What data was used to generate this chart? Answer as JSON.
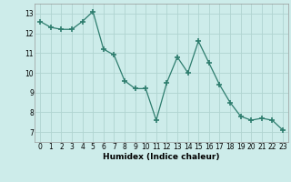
{
  "x": [
    0,
    1,
    2,
    3,
    4,
    5,
    6,
    7,
    8,
    9,
    10,
    11,
    12,
    13,
    14,
    15,
    16,
    17,
    18,
    19,
    20,
    21,
    22,
    23
  ],
  "y": [
    12.6,
    12.3,
    12.2,
    12.2,
    12.6,
    13.1,
    11.2,
    10.9,
    9.6,
    9.2,
    9.2,
    7.6,
    9.5,
    10.8,
    10.0,
    11.6,
    10.5,
    9.4,
    8.5,
    7.8,
    7.6,
    7.7,
    7.6,
    7.1
  ],
  "xlabel": "Humidex (Indice chaleur)",
  "ylim": [
    6.5,
    13.5
  ],
  "xlim": [
    -0.5,
    23.5
  ],
  "yticks": [
    7,
    8,
    9,
    10,
    11,
    12,
    13
  ],
  "xticks": [
    0,
    1,
    2,
    3,
    4,
    5,
    6,
    7,
    8,
    9,
    10,
    11,
    12,
    13,
    14,
    15,
    16,
    17,
    18,
    19,
    20,
    21,
    22,
    23
  ],
  "line_color": "#2e7d6e",
  "marker": "+",
  "marker_size": 4,
  "bg_color": "#cdecea",
  "grid_color": "#b0d4d0",
  "fig_bg": "#cdecea",
  "xlabel_fontsize": 6.5,
  "tick_fontsize": 5.5
}
